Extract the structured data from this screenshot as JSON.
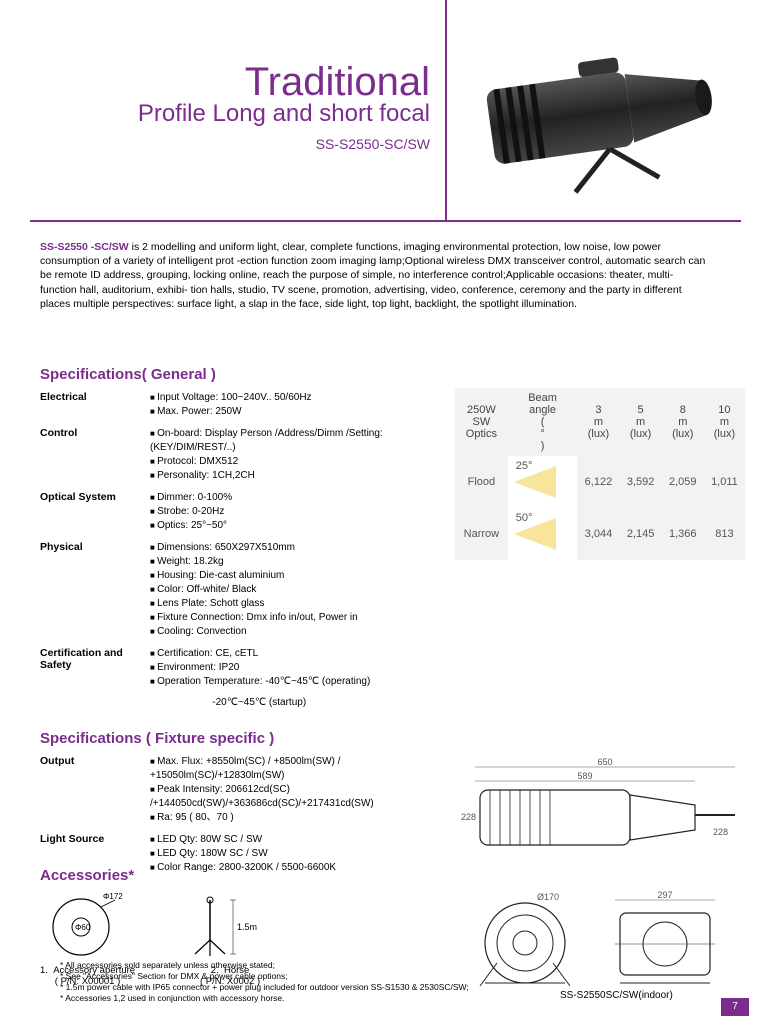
{
  "title": {
    "main": "Traditional",
    "sub": "Profile Long and short focal",
    "model": "SS-S2550-SC/SW"
  },
  "intro": {
    "lead": "SS-S2550 -SC/SW",
    "body": " is 2 modelling and uniform light, clear, complete functions, imaging environmental protection, low noise, low power consumption of a variety of intelligent prot -ection function zoom imaging lamp;Optional wireless DMX transceiver control, automatic search can be remote ID address, grouping, locking online, reach the purpose of simple, no interference control;Applicable occasions: theater, multi-function hall, auditorium, exhibi- tion halls, studio, TV scene, promotion, advertising, video, conference, ceremony and the party in different places multiple perspectives: surface light, a slap in the face, side light, top light, backlight, the spotlight illumination."
  },
  "sections": {
    "general": "Specifications( General )",
    "fixture": "Specifications ( Fixture specific )",
    "accessories": "Accessories*"
  },
  "general": [
    {
      "label": "Electrical",
      "items": [
        "Input Voltage: 100~240V.. 50/60Hz",
        "Max. Power: 250W"
      ]
    },
    {
      "label": "Control",
      "items": [
        "On-board:  Display Person /Address/Dimm /Setting:(KEY/DIM/REST/..)",
        "Protocol: DMX512",
        "Personality: 1CH,2CH"
      ]
    },
    {
      "label": "Optical System",
      "items": [
        "Dimmer: 0-100%",
        "Strobe: 0-20Hz",
        "Optics: 25°~50°"
      ]
    },
    {
      "label": "Physical",
      "items": [
        "Dimensions: 650X297X510mm",
        "Weight: 18.2kg",
        "Housing: Die-cast aluminium",
        "Color: Off-white/ Black",
        "Lens Plate: Schott glass",
        "Fixture Connection: Dmx info in/out, Power in",
        "Cooling: Convection"
      ]
    },
    {
      "label": "Certification and Safety",
      "items": [
        "Certification: CE, cETL",
        "Environment: IP20",
        "Operation Temperature: -40℃~45℃ (operating)"
      ]
    }
  ],
  "general_extra": "                                                              -20℃~45℃ (startup)",
  "fixture": [
    {
      "label": "Output",
      "items": [
        "Max. Flux: +8550lm(SC) / +8500lm(SW) / +15050lm(SC)/+12830lm(SW)",
        "Peak Intensity: 206612cd(SC) /+144050cd(SW)/+363686cd(SC)/+217431cd(SW)",
        "Ra: 95 ( 80、70 )"
      ]
    },
    {
      "label": "Light Source",
      "items": [
        "LED Qty: 80W SC / SW",
        "LED Qty: 180W SC / SW",
        "Color Range: 2800-3200K / 5500-6600K"
      ]
    }
  ],
  "beam": {
    "header": [
      "250W SW Optics",
      "Beam angle ( ° )",
      "3 m (lux)",
      "5 m (lux)",
      "8 m (lux)",
      "10 m (lux)"
    ],
    "rows": [
      {
        "mode": "Flood",
        "angle": "25°",
        "vals": [
          "6,122",
          "3,592",
          "2,059",
          "1,011"
        ]
      },
      {
        "mode": "Narrow",
        "angle": "50°",
        "vals": [
          "3,044",
          "2,145",
          "1,366",
          "813"
        ]
      }
    ],
    "beam_color": "#f5e08a"
  },
  "accessories_list": [
    {
      "num": "1.",
      "name": "Accessory aperture",
      "pn": "( P/N: X00001 )",
      "dims": {
        "outer": "Φ172",
        "inner": "Φ60"
      }
    },
    {
      "num": "2.",
      "name": "Horse",
      "pn": "( P/N: X0002 )",
      "height": "1.5m"
    }
  ],
  "notes": [
    "All accessories sold separately unless otherwise stated;",
    "See \"Accessories\" Section for DMX & power cable options;",
    "1.5m power cable with IP65 connector + power plug included for outdoor version SS-S1530 & 2530SC/SW;",
    "Accessories 1,2 used in conjunction with accessory horse."
  ],
  "diagram_dims": {
    "w1": "650",
    "w2": "589",
    "h1": "228",
    "h2": "228",
    "w3": "297",
    "d1": "Ø170"
  },
  "model_caption": "SS-S2550SC/SW(indoor)",
  "page": "7",
  "colors": {
    "accent": "#7b2d8e",
    "grey": "#f2f2f2"
  }
}
